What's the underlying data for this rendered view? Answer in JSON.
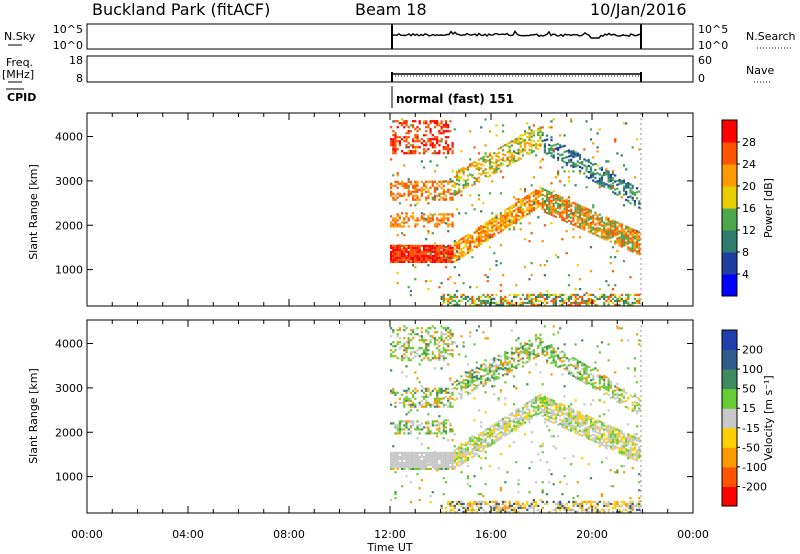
{
  "header": {
    "title": "Buckland Park (fitACF)",
    "beam": "Beam 18",
    "date": "10/Jan/2016"
  },
  "strip_nsky": {
    "left_label": "N.Sky",
    "left_ticks": [
      "10^5",
      "10^0"
    ],
    "right_ticks": [
      "10^5",
      "10^0"
    ],
    "right_label": "N.Search"
  },
  "strip_freq": {
    "left_label_1": "Freq.",
    "left_label_2": "[MHz]",
    "left_ticks": [
      "18",
      "8"
    ],
    "right_ticks": [
      "60",
      "0"
    ],
    "right_label": "Nave"
  },
  "cpid": {
    "label": "CPID",
    "mode": "normal (fast) 151"
  },
  "chart_data": [
    {
      "type": "heatmap",
      "name": "power",
      "ylabel": "Slant Range [km]",
      "yticks": [
        1000,
        2000,
        3000,
        4000
      ],
      "ylim": [
        180,
        4530
      ],
      "xlim_hours": [
        0,
        24
      ],
      "colorbar": {
        "label": "Power [dB]",
        "ticks": [
          "4",
          "8",
          "12",
          "16",
          "20",
          "24",
          "28"
        ],
        "levels": [
          "#0000ff",
          "#1f3f9e",
          "#2e7d6e",
          "#4da84d",
          "#e8d000",
          "#ff9900",
          "#ff5500",
          "#ff0000"
        ]
      }
    },
    {
      "type": "heatmap",
      "name": "velocity",
      "ylabel": "Slant Range [km]",
      "yticks": [
        1000,
        2000,
        3000,
        4000
      ],
      "ylim": [
        180,
        4530
      ],
      "xlim_hours": [
        0,
        24
      ],
      "colorbar": {
        "label": "Velocity [m s⁻¹]",
        "ticks": [
          "200",
          "100",
          "50",
          "15",
          "-15",
          "-50",
          "-100",
          "-200"
        ],
        "levels": [
          "#1f3faf",
          "#2e5e8e",
          "#3f8a5f",
          "#66cc33",
          "#c8c8c8",
          "#ffd000",
          "#ff9900",
          "#ff5500",
          "#ff0000"
        ]
      }
    }
  ],
  "xaxis": {
    "label": "Time UT",
    "ticks": [
      "00:00",
      "04:00",
      "08:00",
      "12:00",
      "16:00",
      "20:00",
      "00:00"
    ]
  }
}
